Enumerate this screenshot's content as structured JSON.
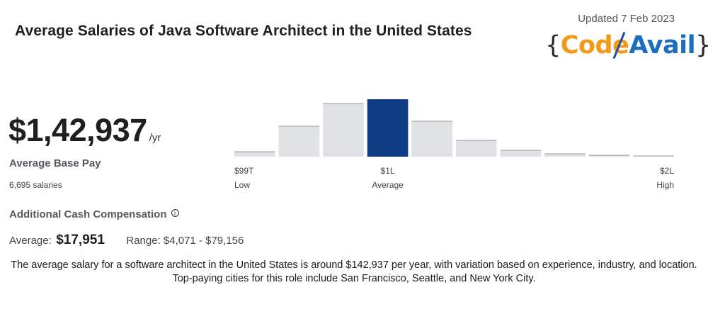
{
  "header": {
    "title": "Average Salaries of Java Software Architect  in the United States",
    "updated": "Updated 7 Feb 2023"
  },
  "logo": {
    "open_brace": "{",
    "code": "Code",
    "avail": "Avail",
    "close_brace": "}",
    "colors": {
      "code": "#f29a16",
      "avail": "#1c6fc0"
    }
  },
  "summary": {
    "amount": "$1,42,937",
    "unit": "/yr",
    "base_label": "Average Base Pay",
    "count": "6,695 salaries",
    "additional_label": "Additional Cash Compensation",
    "avg_label": "Average:",
    "avg_value": "$17,951",
    "range": "Range: $4,071 - $79,156"
  },
  "description": "The average salary for a software architect in the United States is around $142,937 per year, with variation based on experience, industry, and location. Top-paying cities for this role include San Francisco, Seattle, and New York City.",
  "chart_data": {
    "type": "bar",
    "values": [
      7,
      43,
      75,
      81,
      50,
      23,
      9,
      4,
      2,
      1
    ],
    "highlight_index": 3,
    "colors": {
      "bar": "#dfe1e4",
      "highlight": "#0d3b84",
      "bar_top": "#9a9fa6"
    },
    "ylim": [
      0,
      81
    ],
    "tick_labels": [
      {
        "value": "$99T",
        "sub": "Low",
        "align": "start"
      },
      {
        "value": "$1L",
        "sub": "Average",
        "align": "middle"
      },
      {
        "value": "$2L",
        "sub": "High",
        "align": "end"
      }
    ]
  }
}
